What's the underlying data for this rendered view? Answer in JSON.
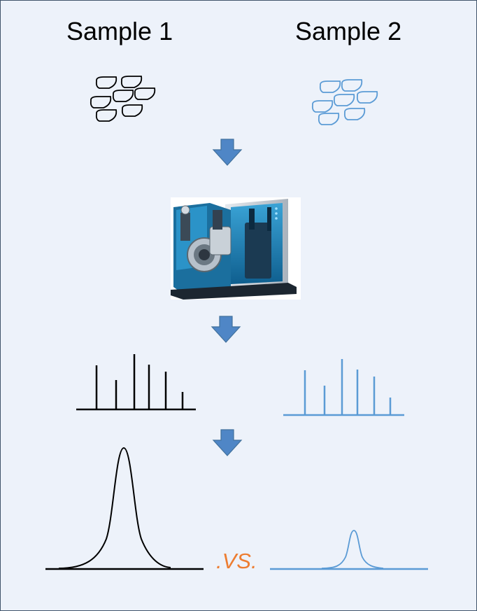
{
  "samples": [
    {
      "title": "Sample 1",
      "color": "#000000"
    },
    {
      "title": "Sample 2",
      "color": "#5b9bd5"
    }
  ],
  "comparison_label": ".VS.",
  "colors": {
    "background": "#edf2fa",
    "border": "#41546b",
    "arrow_fill": "#4f86c6",
    "arrow_stroke": "#41719c",
    "comparison_label": "#ed7d31",
    "instrument_body": "#1d7fb0",
    "instrument_panel": "#c9cfd6"
  },
  "icons": {
    "arrows": "down-arrow-icon",
    "instrument": "mass-spectrometer-icon",
    "cells": "cell-cluster-icon"
  }
}
